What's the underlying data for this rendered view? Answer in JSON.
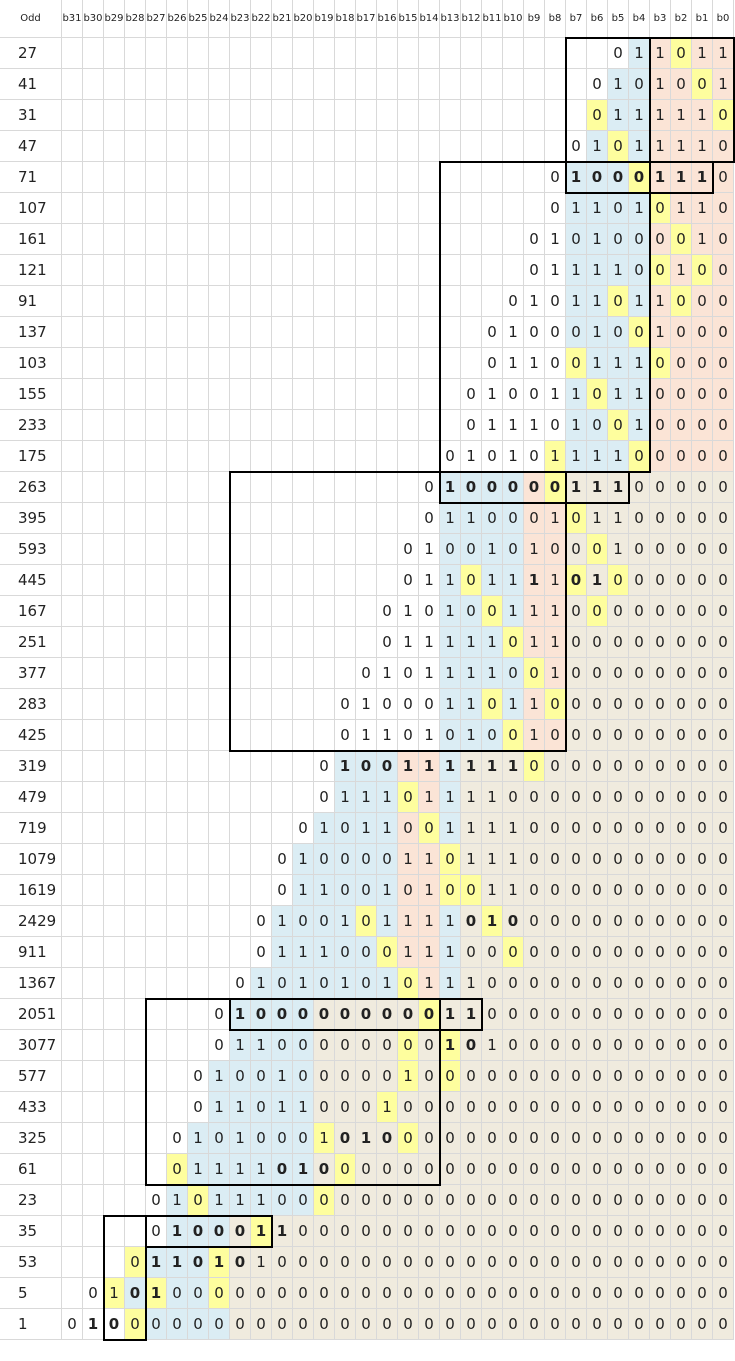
{
  "header": {
    "first": "Odd",
    "columns": [
      "b31",
      "b30",
      "b29",
      "b28",
      "b27",
      "b26",
      "b25",
      "b24",
      "b23",
      "b22",
      "b21",
      "b20",
      "b19",
      "b18",
      "b17",
      "b16",
      "b15",
      "b14",
      "b13",
      "b12",
      "b11",
      "b10",
      "b9",
      "b8",
      "b7",
      "b6",
      "b5",
      "b4",
      "b3",
      "b2",
      "b1",
      "b0"
    ]
  },
  "colors": {
    "blue": "#dbedf4",
    "orange": "#fbe4d6",
    "yellow": "#fefe9e",
    "beige": "#f0ebde",
    "white": "#ffffff"
  },
  "rows": [
    {
      "label": "27",
      "bits": "011011",
      "start": 26,
      "bold": [],
      "yellow": [
        29
      ]
    },
    {
      "label": "41",
      "bits": "0101001",
      "start": 25,
      "bold": [],
      "yellow": [
        30
      ]
    },
    {
      "label": "31",
      "bits": "0111110",
      "start": 25,
      "bold": [],
      "yellow": [
        25,
        31
      ]
    },
    {
      "label": "47",
      "bits": "01011110",
      "start": 24,
      "bold": [],
      "yellow": [
        26
      ]
    },
    {
      "label": "71",
      "bits": "010001110",
      "start": 23,
      "bold": [
        24,
        25,
        26,
        27,
        28,
        29,
        30
      ],
      "yellow": [
        27
      ]
    },
    {
      "label": "107",
      "bits": "011010110",
      "start": 23,
      "bold": [],
      "yellow": [
        28
      ]
    },
    {
      "label": "161",
      "bits": "0101000010",
      "start": 22,
      "bold": [],
      "yellow": [
        29
      ]
    },
    {
      "label": "121",
      "bits": "0111100100",
      "start": 22,
      "bold": [],
      "yellow": [
        28,
        30
      ]
    },
    {
      "label": "91",
      "bits": "01011011000",
      "start": 21,
      "bold": [],
      "yellow": [
        26,
        29
      ]
    },
    {
      "label": "137",
      "bits": "010001001000",
      "start": 20,
      "bold": [],
      "yellow": [
        27
      ]
    },
    {
      "label": "103",
      "bits": "011001110000",
      "start": 20,
      "bold": [],
      "yellow": [
        24,
        28
      ]
    },
    {
      "label": "155",
      "bits": "0100110110000",
      "start": 19,
      "bold": [],
      "yellow": [
        25
      ]
    },
    {
      "label": "233",
      "bits": "0111010010000",
      "start": 19,
      "bold": [],
      "yellow": [
        26
      ]
    },
    {
      "label": "175",
      "bits": "01010111100000",
      "start": 18,
      "bold": [],
      "yellow": [
        23,
        27
      ]
    },
    {
      "label": "263",
      "bits": "010000011100000",
      "start": 17,
      "bold": [
        18,
        19,
        20,
        21,
        22,
        23,
        24,
        25,
        26
      ],
      "yellow": [
        23
      ]
    },
    {
      "label": "395",
      "bits": "011000101100000",
      "start": 17,
      "bold": [],
      "yellow": [
        24
      ]
    },
    {
      "label": "593",
      "bits": "0100101000100000",
      "start": 16,
      "bold": [],
      "yellow": [
        25
      ]
    },
    {
      "label": "445",
      "bits": "0110111101000000",
      "start": 16,
      "bold": [
        22,
        24,
        25
      ],
      "yellow": [
        19,
        24,
        26
      ]
    },
    {
      "label": "167",
      "bits": "01010011100000000",
      "start": 15,
      "bold": [],
      "yellow": [
        20,
        25
      ]
    },
    {
      "label": "251",
      "bits": "01111101100000000",
      "start": 15,
      "bold": [],
      "yellow": [
        21
      ]
    },
    {
      "label": "377",
      "bits": "010111100100000000",
      "start": 14,
      "bold": [],
      "yellow": [
        22
      ]
    },
    {
      "label": "283",
      "bits": "0100011011000000000",
      "start": 13,
      "bold": [],
      "yellow": [
        20,
        23
      ]
    },
    {
      "label": "425",
      "bits": "0110101001000000000",
      "start": 13,
      "bold": [],
      "yellow": [
        21
      ]
    },
    {
      "label": "319",
      "bits": "01001111110000000000",
      "start": 12,
      "bold": [
        13,
        14,
        15,
        16,
        17,
        18,
        19,
        20,
        21
      ],
      "yellow": [
        22
      ]
    },
    {
      "label": "479",
      "bits": "01110111100000000000",
      "start": 12,
      "bold": [],
      "yellow": [
        16
      ]
    },
    {
      "label": "719",
      "bits": "010110011110000000000",
      "start": 11,
      "bold": [],
      "yellow": [
        17
      ]
    },
    {
      "label": "1079",
      "bits": "0100001101110000000000",
      "start": 10,
      "bold": [],
      "yellow": [
        18
      ]
    },
    {
      "label": "1619",
      "bits": "0110010100110000000000",
      "start": 10,
      "bold": [],
      "yellow": [
        18,
        19
      ]
    },
    {
      "label": "2429",
      "bits": "01001011110100000000000",
      "start": 9,
      "bold": [
        19,
        20,
        21
      ],
      "yellow": [
        14,
        20
      ]
    },
    {
      "label": "911",
      "bits": "01110001110000000000000",
      "start": 9,
      "bold": [],
      "yellow": [
        15,
        21
      ]
    },
    {
      "label": "1367",
      "bits": "010101010111000000000000",
      "start": 8,
      "bold": [],
      "yellow": [
        16
      ]
    },
    {
      "label": "2051",
      "bits": "0100000000011000000000000",
      "start": 7,
      "bold": [
        8,
        9,
        9,
        10,
        11,
        12,
        13,
        14,
        15,
        16,
        17,
        18,
        19
      ],
      "yellow": [
        17
      ]
    },
    {
      "label": "3077",
      "bits": "0110000000010100000000000",
      "start": 7,
      "bold": [
        18,
        19
      ],
      "yellow": [
        16,
        18
      ]
    },
    {
      "label": "577",
      "bits": "01001000001000000000000000",
      "start": 6,
      "bold": [],
      "yellow": [
        16,
        18
      ]
    },
    {
      "label": "433",
      "bits": "01101100010000000000000000",
      "start": 6,
      "bold": [],
      "yellow": [
        15
      ]
    },
    {
      "label": "325",
      "bits": "010100010100000000000000000",
      "start": 5,
      "bold": [
        13,
        14,
        15
      ],
      "yellow": [
        12,
        16
      ]
    },
    {
      "label": "61",
      "bits": "011110100000000000000000000",
      "start": 5,
      "bold": [
        10,
        11,
        12
      ],
      "yellow": [
        5,
        13
      ]
    },
    {
      "label": "23",
      "bits": "0101110000000000000000000000",
      "start": 4,
      "bold": [],
      "yellow": [
        6,
        12
      ]
    },
    {
      "label": "35",
      "bits": "0100011000000000000000000000",
      "start": 4,
      "bold": [
        5,
        6,
        7,
        8,
        9,
        10
      ],
      "yellow": [
        9
      ]
    },
    {
      "label": "53",
      "bits": "01101010000000000000000000000",
      "start": 3,
      "bold": [
        4,
        5,
        6,
        7,
        8
      ],
      "yellow": [
        3,
        7
      ]
    },
    {
      "label": "5",
      "bits": "0101000000000000000000000000000",
      "start": 1,
      "bold": [
        3,
        4
      ],
      "yellow": [
        2,
        4,
        7
      ]
    },
    {
      "label": "1",
      "bits": "01000000000000000000000000000000",
      "start": 0,
      "bold": [
        1,
        2
      ],
      "yellow": [
        3
      ]
    }
  ]
}
